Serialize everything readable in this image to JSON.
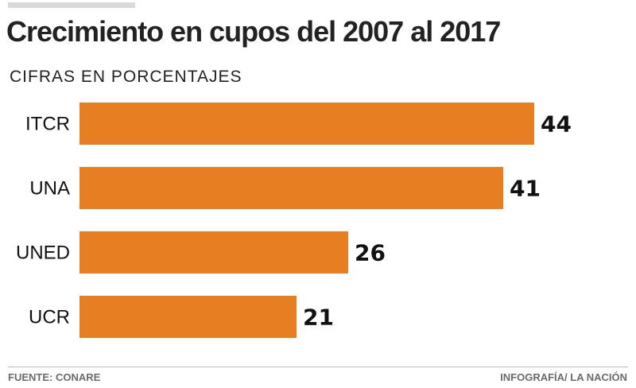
{
  "chart_data": {
    "type": "bar",
    "orientation": "horizontal",
    "title": "Crecimiento en cupos del 2007 al 2017",
    "subtitle": "CIFRAS EN PORCENTAJES",
    "categories": [
      "ITCR",
      "UNA",
      "UNED",
      "UCR"
    ],
    "values": [
      44,
      41,
      26,
      21
    ],
    "xlabel": "",
    "ylabel": "",
    "xlim": [
      0,
      44
    ],
    "grid": false,
    "bar_color": "#E87E22",
    "data_labels": [
      "44",
      "41",
      "26",
      "21"
    ]
  },
  "footer": {
    "source": "FUENTE: CONARE",
    "credit": "INFOGRAFÍA/ LA NACIÓN"
  }
}
